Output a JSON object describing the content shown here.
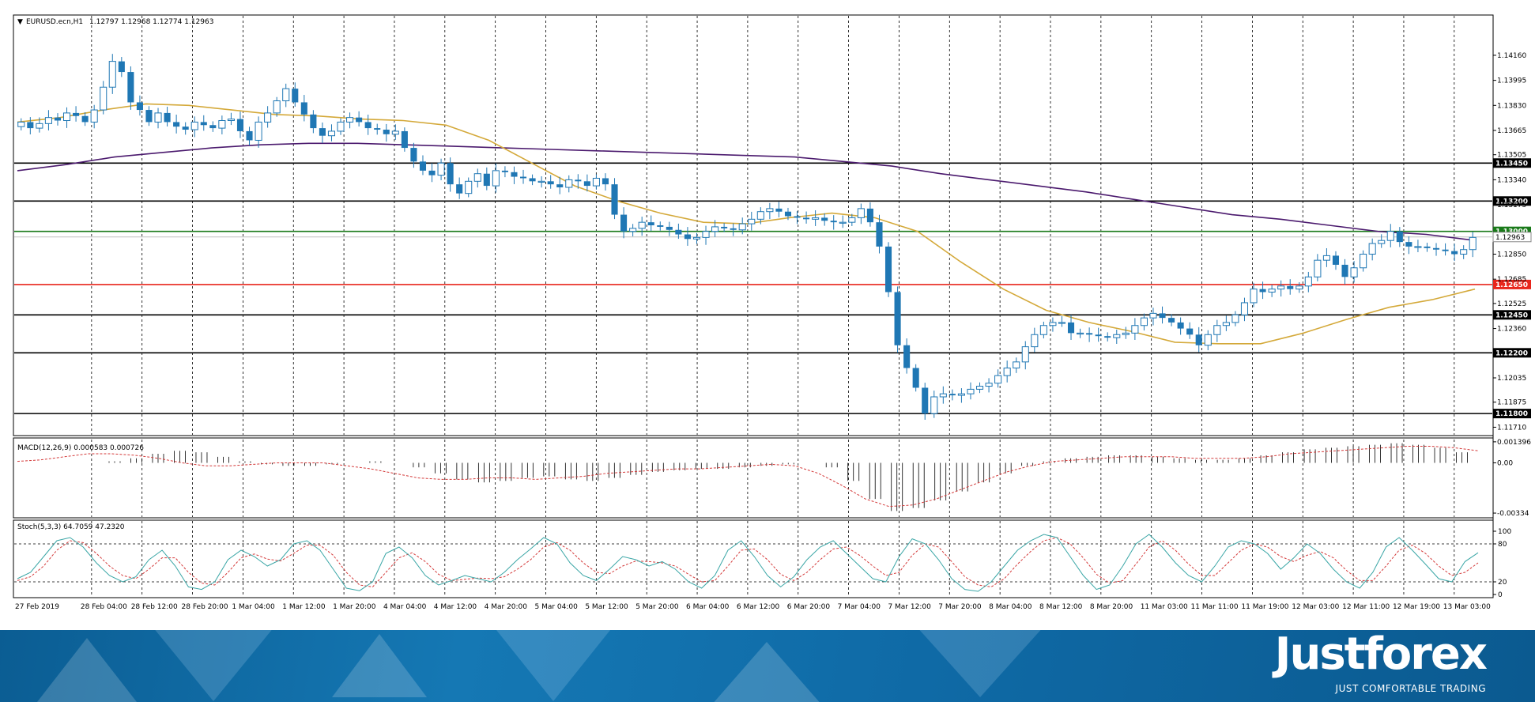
{
  "chart_data": {
    "type": "candlestick",
    "symbol_header": "EURUSD.ecn,H1",
    "ohlc_header": "1.12797 1.12968 1.12774 1.12963",
    "x_tick_labels": [
      "27 Feb 2019",
      "28 Feb 04:00",
      "28 Feb 12:00",
      "28 Feb 20:00",
      "1 Mar 04:00",
      "1 Mar 12:00",
      "1 Mar 20:00",
      "4 Mar 04:00",
      "4 Mar 12:00",
      "4 Mar 20:00",
      "5 Mar 04:00",
      "5 Mar 12:00",
      "5 Mar 20:00",
      "6 Mar 04:00",
      "6 Mar 12:00",
      "6 Mar 20:00",
      "7 Mar 04:00",
      "7 Mar 12:00",
      "7 Mar 20:00",
      "8 Mar 04:00",
      "8 Mar 12:00",
      "8 Mar 20:00",
      "11 Mar 03:00",
      "11 Mar 11:00",
      "11 Mar 19:00",
      "12 Mar 03:00",
      "12 Mar 11:00",
      "12 Mar 19:00",
      "13 Mar 03:00"
    ],
    "price_axis_labels": [
      "1.14160",
      "1.13995",
      "1.13830",
      "1.13665",
      "1.13505",
      "1.13340",
      "1.13175",
      "1.12850",
      "1.12685",
      "1.12525",
      "1.12360",
      "1.12035",
      "1.11875",
      "1.11710"
    ],
    "price_range": [
      1.1166,
      1.1442
    ],
    "current_price_label": "1.12963",
    "levels": [
      {
        "label": "1.13450",
        "value": 1.1345,
        "color": "#000000"
      },
      {
        "label": "1.13200",
        "value": 1.132,
        "color": "#000000"
      },
      {
        "label": "1.13000",
        "value": 1.13,
        "color": "#1a7a1a"
      },
      {
        "label": "1.12650",
        "value": 1.1265,
        "color": "#e8261c"
      },
      {
        "label": "1.12450",
        "value": 1.1245,
        "color": "#000000"
      },
      {
        "label": "1.12200",
        "value": 1.122,
        "color": "#000000"
      },
      {
        "label": "1.11800",
        "value": 1.118,
        "color": "#000000"
      }
    ],
    "candle_color": "#1f77b4",
    "ma_fast_color": "#d4a93a",
    "ma_slow_color": "#4b1a6e",
    "price_path": [
      1.1372,
      1.1368,
      1.1371,
      1.1375,
      1.1373,
      1.1378,
      1.1376,
      1.1372,
      1.138,
      1.1395,
      1.1412,
      1.1405,
      1.1385,
      1.138,
      1.1372,
      1.1378,
      1.1372,
      1.1369,
      1.1367,
      1.1372,
      1.137,
      1.1368,
      1.1373,
      1.1374,
      1.1366,
      1.136,
      1.1372,
      1.1378,
      1.1386,
      1.1394,
      1.1385,
      1.1377,
      1.1368,
      1.1363,
      1.1366,
      1.1372,
      1.1375,
      1.1372,
      1.1368,
      1.1367,
      1.1364,
      1.1366,
      1.1355,
      1.1346,
      1.134,
      1.1337,
      1.1345,
      1.1331,
      1.1325,
      1.1333,
      1.1338,
      1.133,
      1.134,
      1.1339,
      1.1336,
      1.1335,
      1.1333,
      1.1333,
      1.1331,
      1.1329,
      1.1334,
      1.1333,
      1.133,
      1.1335,
      1.1331,
      1.1311,
      1.13,
      1.1302,
      1.1306,
      1.1304,
      1.1303,
      1.1301,
      1.1298,
      1.1295,
      1.1296,
      1.13,
      1.1303,
      1.1302,
      1.1301,
      1.1305,
      1.1308,
      1.1313,
      1.1315,
      1.1313,
      1.131,
      1.1309,
      1.1308,
      1.1309,
      1.1307,
      1.1306,
      1.1306,
      1.1309,
      1.1315,
      1.1306,
      1.129,
      1.126,
      1.1225,
      1.121,
      1.1197,
      1.118,
      1.1191,
      1.1193,
      1.1192,
      1.1193,
      1.1196,
      1.1198,
      1.12,
      1.1205,
      1.121,
      1.1214,
      1.1224,
      1.1232,
      1.1238,
      1.124,
      1.124,
      1.1233,
      1.1233,
      1.1232,
      1.1231,
      1.123,
      1.1232,
      1.1233,
      1.1238,
      1.1243,
      1.1246,
      1.1243,
      1.124,
      1.1236,
      1.1232,
      1.1225,
      1.1232,
      1.1238,
      1.124,
      1.1245,
      1.1253,
      1.1262,
      1.126,
      1.1262,
      1.1264,
      1.1262,
      1.1264,
      1.127,
      1.1281,
      1.1284,
      1.1278,
      1.127,
      1.1276,
      1.1285,
      1.1292,
      1.1294,
      1.13,
      1.1293,
      1.129,
      1.129,
      1.1289,
      1.1288,
      1.1287,
      1.1285,
      1.1288,
      1.1296
    ],
    "ma_fast": [
      1.1372,
      1.1375,
      1.138,
      1.1384,
      1.1383,
      1.138,
      1.1377,
      1.1376,
      1.1374,
      1.1373,
      1.137,
      1.136,
      1.1345,
      1.133,
      1.132,
      1.1312,
      1.1306,
      1.1305,
      1.1309,
      1.1312,
      1.1309,
      1.13,
      1.128,
      1.1262,
      1.1248,
      1.124,
      1.1234,
      1.1227,
      1.1226,
      1.1226,
      1.1233,
      1.1242,
      1.125,
      1.1255,
      1.1262
    ],
    "ma_slow": [
      1.134,
      1.1344,
      1.1349,
      1.1352,
      1.1355,
      1.1357,
      1.1358,
      1.1358,
      1.1357,
      1.1356,
      1.1355,
      1.1354,
      1.1353,
      1.1352,
      1.1351,
      1.135,
      1.1349,
      1.1346,
      1.1343,
      1.1338,
      1.1334,
      1.133,
      1.1326,
      1.1321,
      1.1316,
      1.1311,
      1.1308,
      1.1304,
      1.13,
      1.1298,
      1.1294
    ],
    "macd": {
      "label": "MACD(12,26,9) 0.000583 0.000726",
      "axis_labels": [
        "0.001396",
        "0.00",
        "-0.00334"
      ],
      "range": [
        -0.0036,
        0.0016
      ],
      "histogram": [
        0.0001,
        0.0003,
        0.0006,
        0.0008,
        0.0007,
        0.0004,
        0.0001,
        -0.0001,
        -0.0002,
        -0.0002,
        -0.0001,
        0.0,
        0.0001,
        0.0,
        -0.0003,
        -0.0007,
        -0.0011,
        -0.0013,
        -0.0012,
        -0.001,
        -0.0009,
        -0.0011,
        -0.0012,
        -0.001,
        -0.0008,
        -0.0006,
        -0.0005,
        -0.0004,
        -0.0004,
        -0.0003,
        -0.0002,
        -0.0001,
        0.0,
        -0.0003,
        -0.0012,
        -0.0024,
        -0.0032,
        -0.003,
        -0.0025,
        -0.0019,
        -0.0013,
        -0.0007,
        -0.0002,
        0.0001,
        0.0003,
        0.0004,
        0.0005,
        0.0005,
        0.0004,
        0.0003,
        0.0002,
        0.0002,
        0.0003,
        0.0005,
        0.0007,
        0.0009,
        0.001,
        0.0011,
        0.0012,
        0.0013,
        0.0012,
        0.001,
        0.0007
      ],
      "signal": [
        0.0001,
        0.0002,
        0.0004,
        0.0006,
        0.0006,
        0.0005,
        0.0003,
        0.0,
        -0.0002,
        -0.0002,
        -0.0001,
        0.0,
        0.0,
        0.0,
        -0.0002,
        -0.0004,
        -0.0007,
        -0.001,
        -0.0011,
        -0.0011,
        -0.001,
        -0.001,
        -0.0011,
        -0.001,
        -0.0009,
        -0.0007,
        -0.0006,
        -0.0005,
        -0.0004,
        -0.0004,
        -0.0003,
        -0.0002,
        -0.0001,
        -0.0002,
        -0.0007,
        -0.0015,
        -0.0024,
        -0.0029,
        -0.0028,
        -0.0024,
        -0.0018,
        -0.0012,
        -0.0006,
        -0.0002,
        0.0001,
        0.0002,
        0.0003,
        0.0004,
        0.0004,
        0.0004,
        0.0003,
        0.0003,
        0.0003,
        0.0004,
        0.0006,
        0.0007,
        0.0008,
        0.0009,
        0.001,
        0.0011,
        0.0011,
        0.001,
        0.0008
      ]
    },
    "stoch": {
      "label": "Stoch(5,3,3) 64.7059 47.2320",
      "axis_labels": [
        "100",
        "80",
        "20",
        "0"
      ],
      "levels": [
        80,
        20
      ],
      "main_color": "#3aa6a6",
      "signal_color": "#d43a3a",
      "k": [
        25,
        35,
        60,
        85,
        90,
        75,
        50,
        30,
        20,
        28,
        55,
        70,
        45,
        12,
        8,
        20,
        55,
        70,
        60,
        45,
        55,
        80,
        85,
        70,
        40,
        10,
        6,
        20,
        65,
        75,
        58,
        30,
        15,
        22,
        30,
        25,
        20,
        35,
        55,
        72,
        90,
        80,
        50,
        30,
        22,
        40,
        60,
        55,
        45,
        52,
        40,
        20,
        10,
        30,
        70,
        85,
        60,
        30,
        12,
        28,
        55,
        75,
        85,
        65,
        45,
        25,
        20,
        60,
        88,
        80,
        55,
        25,
        8,
        5,
        20,
        45,
        70,
        85,
        95,
        90,
        60,
        30,
        8,
        15,
        45,
        80,
        95,
        75,
        50,
        30,
        20,
        45,
        75,
        85,
        80,
        65,
        40,
        58,
        80,
        65,
        40,
        20,
        10,
        35,
        75,
        90,
        70,
        48,
        25,
        20,
        52,
        66
      ],
      "d": [
        22,
        28,
        45,
        70,
        85,
        82,
        65,
        45,
        30,
        25,
        40,
        58,
        58,
        35,
        18,
        15,
        35,
        58,
        64,
        56,
        53,
        65,
        78,
        78,
        62,
        35,
        15,
        12,
        35,
        58,
        66,
        52,
        32,
        22,
        24,
        26,
        25,
        28,
        40,
        55,
        75,
        82,
        70,
        50,
        35,
        33,
        45,
        53,
        52,
        50,
        45,
        32,
        20,
        22,
        45,
        70,
        72,
        55,
        32,
        22,
        35,
        55,
        72,
        75,
        62,
        45,
        30,
        35,
        62,
        80,
        75,
        52,
        28,
        15,
        12,
        25,
        48,
        68,
        85,
        90,
        80,
        58,
        32,
        18,
        22,
        48,
        75,
        85,
        70,
        48,
        30,
        30,
        50,
        70,
        80,
        75,
        60,
        52,
        62,
        68,
        58,
        38,
        22,
        22,
        45,
        70,
        78,
        65,
        45,
        30,
        35,
        50
      ]
    }
  },
  "footer": {
    "brand": "Justforex",
    "tagline": "JUST COMFORTABLE TRADING"
  }
}
